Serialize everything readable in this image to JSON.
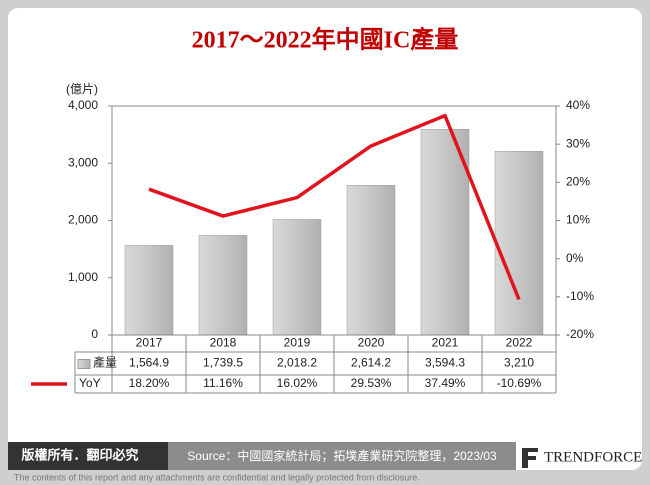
{
  "chart_data": {
    "type": "bar",
    "title": "2017～2022年中國IC產量",
    "y_label": "(億片)",
    "categories": [
      "2017",
      "2018",
      "2019",
      "2020",
      "2021",
      "2022"
    ],
    "series": [
      {
        "name": "產量",
        "color": "#c4c4c4",
        "values": [
          1564.9,
          1739.5,
          2018.2,
          2614.2,
          3594.3,
          3210
        ],
        "value_labels": [
          "1,564.9",
          "1,739.5",
          "2,018.2",
          "2,614.2",
          "3,594.3",
          "3,210"
        ]
      },
      {
        "name": "YoY",
        "type": "line",
        "axis": "y2",
        "color": "#e0141e",
        "values": [
          18.2,
          11.16,
          16.02,
          29.53,
          37.49,
          -10.69
        ],
        "value_labels": [
          "18.20%",
          "11.16%",
          "16.02%",
          "29.53%",
          "37.49%",
          "-10.69%"
        ]
      }
    ],
    "ylim": [
      0,
      4000
    ],
    "yticks": [
      0,
      {
        "value": 1000,
        "label": "1,000"
      },
      {
        "value": 2000,
        "label": "2,000"
      },
      {
        "value": 3000,
        "label": "3,000"
      },
      {
        "value": 4000,
        "label": "4,000"
      }
    ],
    "y2lim": [
      -20,
      40
    ],
    "y2ticks": [
      {
        "value": -20,
        "label": "-20%"
      },
      {
        "value": -10,
        "label": "-10%"
      },
      {
        "value": 0,
        "label": "0%"
      },
      {
        "value": 10,
        "label": "10%"
      },
      {
        "value": 20,
        "label": "20%"
      },
      {
        "value": 30,
        "label": "30%"
      },
      {
        "value": 40,
        "label": "40%"
      }
    ]
  },
  "footer": {
    "rights": "版權所有．翻印必究",
    "source": "Source：中國國家統計局；拓墣產業研究院整理，2023/03",
    "brand": "TRENDFORCE",
    "disclaimer": "The contents of this report and any attachments are confidential and legally protected from disclosure."
  }
}
